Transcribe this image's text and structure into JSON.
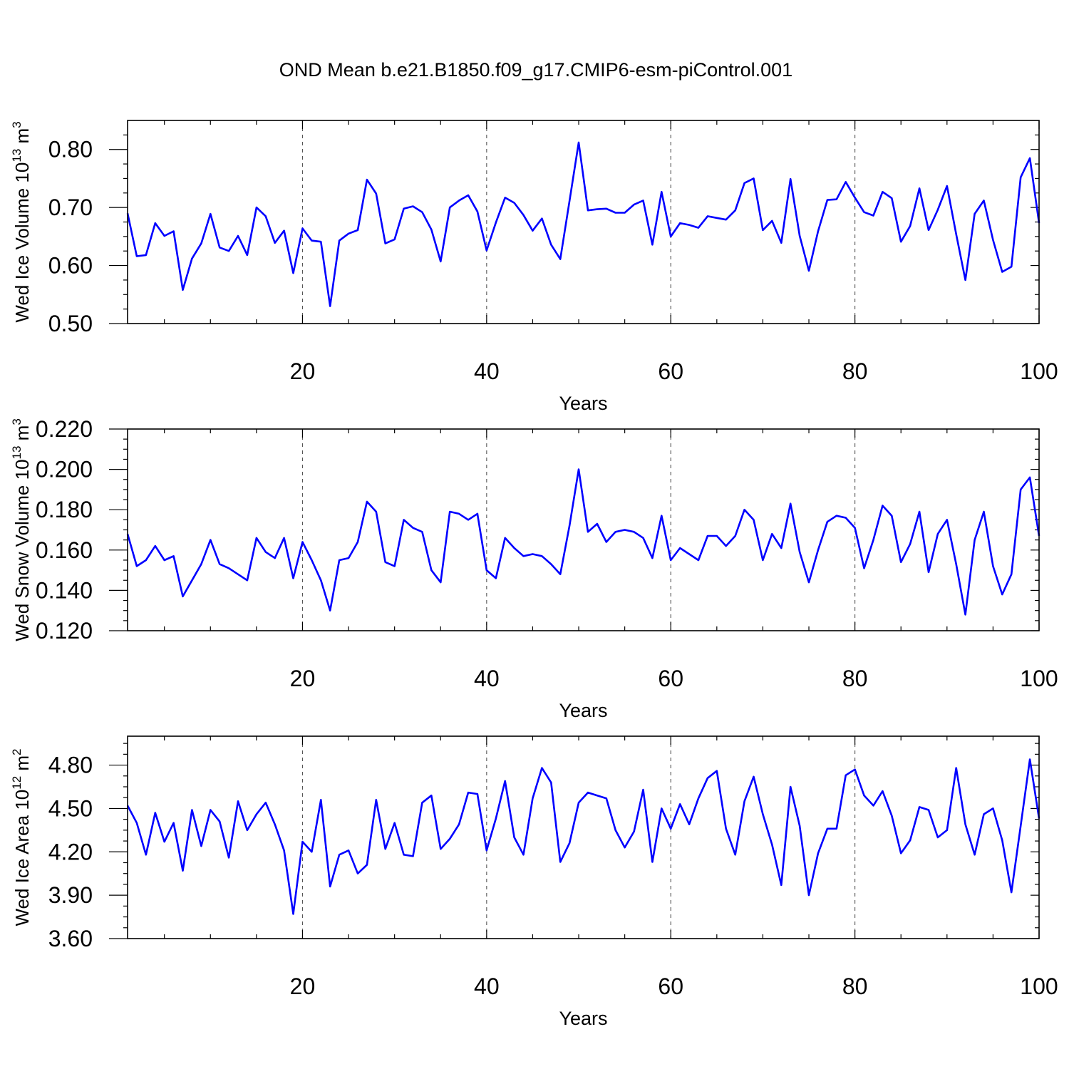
{
  "title": "OND Mean b.e21.B1850.f09_g17.CMIP6-esm-piControl.001",
  "chart_data": [
    {
      "type": "line",
      "ylabel": {
        "main": "Wed Ice Volume 10",
        "exp": "13",
        "unit": " m",
        "unit_exp": "3"
      },
      "xlabel": "Years",
      "xlim": [
        1,
        100
      ],
      "ylim": [
        0.5,
        0.85
      ],
      "yticks": [
        0.5,
        0.6,
        0.7,
        0.8
      ],
      "ytick_labels": [
        "0.50",
        "0.60",
        "0.70",
        "0.80"
      ],
      "yminor": [
        0.525,
        0.55,
        0.575,
        0.625,
        0.65,
        0.675,
        0.725,
        0.75,
        0.775,
        0.825
      ],
      "xticks": [
        20,
        40,
        60,
        80,
        100
      ],
      "xtick_labels": [
        "20",
        "40",
        "60",
        "80",
        "100"
      ],
      "xminor": [
        5,
        10,
        15,
        25,
        30,
        35,
        45,
        50,
        55,
        65,
        70,
        75,
        85,
        90,
        95
      ],
      "grid_x": [
        20,
        40,
        60,
        80
      ],
      "series": [
        {
          "name": "Wed Ice Volume",
          "color": "#0000ff",
          "values": [
            0.69,
            0.616,
            0.618,
            0.673,
            0.651,
            0.659,
            0.558,
            0.612,
            0.638,
            0.689,
            0.631,
            0.625,
            0.651,
            0.618,
            0.7,
            0.685,
            0.639,
            0.66,
            0.587,
            0.664,
            0.643,
            0.641,
            0.53,
            0.643,
            0.655,
            0.661,
            0.748,
            0.724,
            0.638,
            0.645,
            0.698,
            0.702,
            0.692,
            0.662,
            0.607,
            0.7,
            0.712,
            0.721,
            0.693,
            0.626,
            0.674,
            0.717,
            0.708,
            0.687,
            0.66,
            0.681,
            0.636,
            0.611,
            0.711,
            0.812,
            0.695,
            0.697,
            0.698,
            0.691,
            0.691,
            0.705,
            0.712,
            0.636,
            0.727,
            0.65,
            0.673,
            0.67,
            0.665,
            0.685,
            0.682,
            0.679,
            0.695,
            0.742,
            0.75,
            0.661,
            0.677,
            0.639,
            0.749,
            0.651,
            0.591,
            0.659,
            0.713,
            0.714,
            0.744,
            0.717,
            0.692,
            0.686,
            0.727,
            0.716,
            0.641,
            0.668,
            0.733,
            0.661,
            0.696,
            0.737,
            0.654,
            0.575,
            0.689,
            0.712,
            0.644,
            0.589,
            0.598,
            0.752,
            0.785,
            0.673
          ]
        }
      ]
    },
    {
      "type": "line",
      "ylabel": {
        "main": "Wed Snow Volume 10",
        "exp": "13",
        "unit": " m",
        "unit_exp": "3"
      },
      "xlabel": "Years",
      "xlim": [
        1,
        100
      ],
      "ylim": [
        0.12,
        0.22
      ],
      "yticks": [
        0.12,
        0.14,
        0.16,
        0.18,
        0.2,
        0.22
      ],
      "ytick_labels": [
        "0.120",
        "0.140",
        "0.160",
        "0.180",
        "0.200",
        "0.220"
      ],
      "yminor": [
        0.125,
        0.13,
        0.135,
        0.145,
        0.15,
        0.155,
        0.165,
        0.17,
        0.175,
        0.185,
        0.19,
        0.195,
        0.205,
        0.21,
        0.215
      ],
      "xticks": [
        20,
        40,
        60,
        80,
        100
      ],
      "xtick_labels": [
        "20",
        "40",
        "60",
        "80",
        "100"
      ],
      "xminor": [
        5,
        10,
        15,
        25,
        30,
        35,
        45,
        50,
        55,
        65,
        70,
        75,
        85,
        90,
        95
      ],
      "grid_x": [
        20,
        40,
        60,
        80
      ],
      "series": [
        {
          "name": "Wed Snow Volume",
          "color": "#0000ff",
          "values": [
            0.168,
            0.152,
            0.155,
            0.162,
            0.155,
            0.157,
            0.137,
            0.145,
            0.153,
            0.165,
            0.153,
            0.151,
            0.148,
            0.145,
            0.166,
            0.159,
            0.156,
            0.166,
            0.146,
            0.164,
            0.155,
            0.145,
            0.13,
            0.155,
            0.156,
            0.164,
            0.184,
            0.179,
            0.154,
            0.152,
            0.175,
            0.171,
            0.169,
            0.15,
            0.144,
            0.179,
            0.178,
            0.175,
            0.178,
            0.15,
            0.146,
            0.166,
            0.161,
            0.157,
            0.158,
            0.157,
            0.153,
            0.148,
            0.172,
            0.2,
            0.169,
            0.173,
            0.164,
            0.169,
            0.17,
            0.169,
            0.166,
            0.156,
            0.177,
            0.155,
            0.161,
            0.158,
            0.155,
            0.167,
            0.167,
            0.162,
            0.167,
            0.18,
            0.175,
            0.155,
            0.168,
            0.161,
            0.183,
            0.159,
            0.144,
            0.16,
            0.174,
            0.177,
            0.176,
            0.171,
            0.151,
            0.165,
            0.182,
            0.177,
            0.154,
            0.163,
            0.179,
            0.149,
            0.168,
            0.175,
            0.153,
            0.128,
            0.165,
            0.179,
            0.152,
            0.138,
            0.148,
            0.19,
            0.196,
            0.167
          ]
        }
      ]
    },
    {
      "type": "line",
      "ylabel": {
        "main": "Wed Ice Area 10",
        "exp": "12",
        "unit": " m",
        "unit_exp": "2"
      },
      "xlabel": "Years",
      "xlim": [
        1,
        100
      ],
      "ylim": [
        3.6,
        5.0
      ],
      "yticks": [
        3.6,
        3.9,
        4.2,
        4.5,
        4.8
      ],
      "ytick_labels": [
        "3.60",
        "3.90",
        "4.20",
        "4.50",
        "4.80"
      ],
      "yminor": [
        3.675,
        3.75,
        3.825,
        3.975,
        4.05,
        4.125,
        4.275,
        4.35,
        4.425,
        4.575,
        4.65,
        4.725,
        4.875,
        4.95
      ],
      "xticks": [
        20,
        40,
        60,
        80,
        100
      ],
      "xtick_labels": [
        "20",
        "40",
        "60",
        "80",
        "100"
      ],
      "xminor": [
        5,
        10,
        15,
        25,
        30,
        35,
        45,
        50,
        55,
        65,
        70,
        75,
        85,
        90,
        95
      ],
      "grid_x": [
        20,
        40,
        60,
        80
      ],
      "series": [
        {
          "name": "Wed Ice Area",
          "color": "#0000ff",
          "values": [
            4.52,
            4.4,
            4.18,
            4.47,
            4.27,
            4.4,
            4.07,
            4.49,
            4.24,
            4.49,
            4.41,
            4.16,
            4.55,
            4.35,
            4.46,
            4.54,
            4.39,
            4.21,
            3.77,
            4.27,
            4.2,
            4.56,
            3.96,
            4.18,
            4.21,
            4.05,
            4.11,
            4.56,
            4.22,
            4.4,
            4.18,
            4.17,
            4.54,
            4.59,
            4.22,
            4.29,
            4.39,
            4.61,
            4.6,
            4.21,
            4.43,
            4.69,
            4.3,
            4.18,
            4.57,
            4.78,
            4.68,
            4.13,
            4.26,
            4.54,
            4.61,
            4.59,
            4.57,
            4.35,
            4.23,
            4.34,
            4.63,
            4.13,
            4.5,
            4.36,
            4.53,
            4.39,
            4.57,
            4.71,
            4.76,
            4.36,
            4.18,
            4.55,
            4.72,
            4.46,
            4.25,
            3.97,
            4.65,
            4.38,
            3.9,
            4.19,
            4.36,
            4.36,
            4.73,
            4.77,
            4.59,
            4.52,
            4.62,
            4.45,
            4.19,
            4.28,
            4.51,
            4.49,
            4.3,
            4.35,
            4.78,
            4.39,
            4.18,
            4.46,
            4.5,
            4.28,
            3.92,
            4.38,
            4.84,
            4.43
          ]
        }
      ]
    }
  ]
}
